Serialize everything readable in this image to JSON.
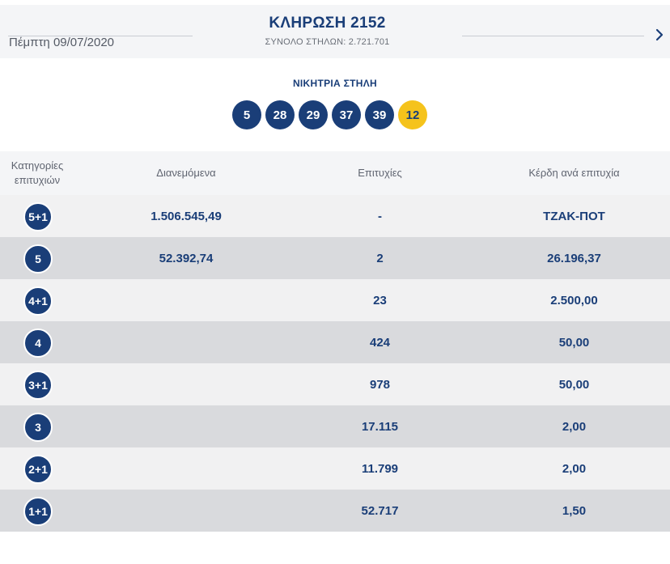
{
  "header": {
    "date": "Πέμπτη 09/07/2020",
    "title": "ΚΛΗΡΩΣΗ 2152",
    "subtitle": "ΣΥΝΟΛΟ ΣΤΗΛΩΝ: 2.721.701",
    "next_icon": "chevron-right-icon"
  },
  "winning": {
    "label": "ΝΙΚΗΤΡΙΑ ΣΤΗΛΗ",
    "numbers": [
      "5",
      "28",
      "29",
      "37",
      "39"
    ],
    "joker": "12"
  },
  "colors": {
    "accent": "#1a3e78",
    "joker": "#f5c31c",
    "row_light": "#f1f1f2",
    "row_dark": "#d9dadd"
  },
  "table": {
    "headers": {
      "category_line1": "Κατηγορίες",
      "category_line2": "επιτυχιών",
      "distributed": "Διανεμόμενα",
      "winners": "Επιτυχίες",
      "prize": "Κέρδη ανά επιτυχία"
    },
    "rows": [
      {
        "category": "5+1",
        "distributed": "1.506.545,49",
        "winners": "-",
        "prize": "ΤΖΑΚ-ΠΟΤ"
      },
      {
        "category": "5",
        "distributed": "52.392,74",
        "winners": "2",
        "prize": "26.196,37"
      },
      {
        "category": "4+1",
        "distributed": "",
        "winners": "23",
        "prize": "2.500,00"
      },
      {
        "category": "4",
        "distributed": "",
        "winners": "424",
        "prize": "50,00"
      },
      {
        "category": "3+1",
        "distributed": "",
        "winners": "978",
        "prize": "50,00"
      },
      {
        "category": "3",
        "distributed": "",
        "winners": "17.115",
        "prize": "2,00"
      },
      {
        "category": "2+1",
        "distributed": "",
        "winners": "11.799",
        "prize": "2,00"
      },
      {
        "category": "1+1",
        "distributed": "",
        "winners": "52.717",
        "prize": "1,50"
      }
    ]
  }
}
